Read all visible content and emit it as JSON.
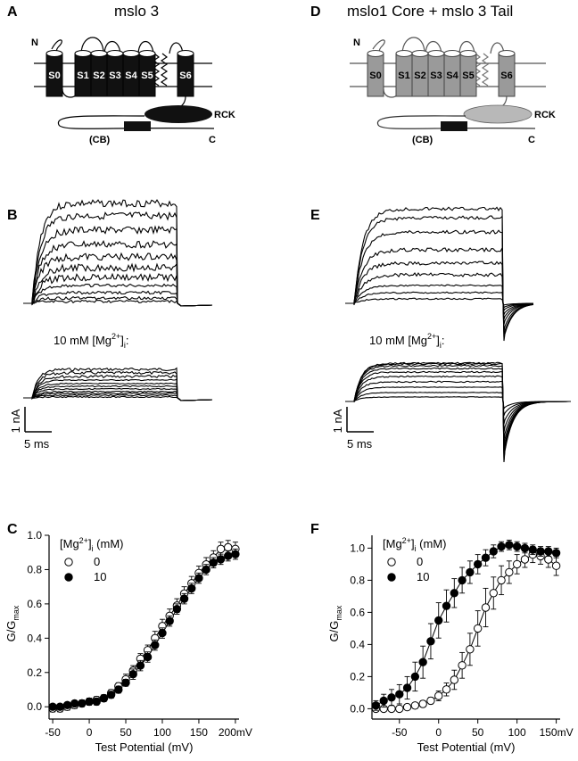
{
  "panels": {
    "A": {
      "letter": "A",
      "title": "mslo 3"
    },
    "D": {
      "letter": "D",
      "title": "mslo1 Core + mslo 3 Tail"
    },
    "B": {
      "letter": "B"
    },
    "E": {
      "letter": "E"
    },
    "C": {
      "letter": "C"
    },
    "F": {
      "letter": "F"
    }
  },
  "topology": {
    "n_terminus": "N",
    "c_terminus": "C",
    "segments": [
      "S0",
      "S1",
      "S2",
      "S3",
      "S4",
      "S5",
      "S6"
    ],
    "rck": "RCK",
    "cb": "(CB)"
  },
  "traces": {
    "mg_label": "10 mM [Mg",
    "mg_sup": "2+",
    "mg_tail": "]",
    "mg_sub": "i",
    "mg_colon": ":",
    "scale_current": "1 nA",
    "scale_time": "5 ms"
  },
  "colors": {
    "wt_fill": "#111111",
    "chimera_fill": "#9a9a9a",
    "rck_chimera": "#b8b8b8"
  },
  "chart_data": [
    {
      "panel": "C",
      "type": "scatter",
      "xlabel": "Test Potential (mV)",
      "ylabel": "G/G",
      "ylabel_sub": "max",
      "legend_title": "[Mg",
      "legend_title_sup": "2+",
      "legend_title_sub": "i",
      "legend_title_tail": " (mM)",
      "xlim": [
        -55,
        205
      ],
      "ylim": [
        -0.03,
        1.0
      ],
      "xticks": [
        "-50",
        "0",
        "50",
        "100",
        "150",
        "200mV"
      ],
      "xtick_values": [
        -50,
        0,
        50,
        100,
        150,
        200
      ],
      "yticks": [
        "0.0",
        "0.2",
        "0.4",
        "0.6",
        "0.8",
        "1.0"
      ],
      "ytick_values": [
        0,
        0.2,
        0.4,
        0.6,
        0.8,
        1.0
      ],
      "legend_placement": "top-left",
      "series": [
        {
          "name": "0",
          "marker": "open",
          "x": [
            -50,
            -40,
            -30,
            -20,
            -10,
            0,
            10,
            20,
            30,
            40,
            50,
            60,
            70,
            80,
            90,
            100,
            110,
            120,
            130,
            140,
            150,
            160,
            170,
            180,
            190,
            200
          ],
          "y": [
            -0.01,
            -0.01,
            0.0,
            0.01,
            0.02,
            0.03,
            0.04,
            0.05,
            0.08,
            0.12,
            0.16,
            0.21,
            0.28,
            0.33,
            0.4,
            0.47,
            0.53,
            0.59,
            0.66,
            0.72,
            0.78,
            0.83,
            0.87,
            0.92,
            0.93,
            0.92
          ],
          "err": [
            0.02,
            0.02,
            0.02,
            0.02,
            0.02,
            0.02,
            0.02,
            0.02,
            0.02,
            0.02,
            0.03,
            0.03,
            0.03,
            0.03,
            0.04,
            0.04,
            0.04,
            0.04,
            0.04,
            0.04,
            0.04,
            0.04,
            0.04,
            0.04,
            0.04,
            0.04
          ]
        },
        {
          "name": "10",
          "marker": "filled",
          "x": [
            -50,
            -40,
            -30,
            -20,
            -10,
            0,
            10,
            20,
            30,
            40,
            50,
            60,
            70,
            80,
            90,
            100,
            110,
            120,
            130,
            140,
            150,
            160,
            170,
            180,
            190,
            200
          ],
          "y": [
            0.0,
            0.0,
            0.01,
            0.02,
            0.02,
            0.03,
            0.03,
            0.05,
            0.07,
            0.1,
            0.14,
            0.19,
            0.24,
            0.29,
            0.36,
            0.43,
            0.5,
            0.57,
            0.63,
            0.69,
            0.75,
            0.8,
            0.84,
            0.86,
            0.88,
            0.89
          ],
          "err": [
            0.01,
            0.01,
            0.01,
            0.01,
            0.01,
            0.02,
            0.02,
            0.02,
            0.02,
            0.02,
            0.02,
            0.03,
            0.03,
            0.03,
            0.03,
            0.03,
            0.03,
            0.03,
            0.03,
            0.03,
            0.03,
            0.03,
            0.03,
            0.03,
            0.03,
            0.03
          ]
        }
      ]
    },
    {
      "panel": "F",
      "type": "scatter",
      "xlabel": "Test Potential (mV)",
      "ylabel": "G/G",
      "ylabel_sub": "max",
      "legend_title": "[Mg",
      "legend_title_sup": "2+",
      "legend_title_sub": "i",
      "legend_title_tail": " (mM)",
      "xlim": [
        -85,
        155
      ],
      "ylim": [
        -0.02,
        1.08
      ],
      "xticks": [
        "-50",
        "0",
        "50",
        "100",
        "150mV"
      ],
      "xtick_values": [
        -50,
        0,
        50,
        100,
        150
      ],
      "yticks": [
        "0.0",
        "0.2",
        "0.4",
        "0.6",
        "0.8",
        "1.0"
      ],
      "ytick_values": [
        0,
        0.2,
        0.4,
        0.6,
        0.8,
        1.0
      ],
      "legend_placement": "top-left",
      "series": [
        {
          "name": "0",
          "marker": "open",
          "x": [
            -80,
            -70,
            -60,
            -50,
            -40,
            -30,
            -20,
            -10,
            0,
            10,
            20,
            30,
            40,
            50,
            60,
            70,
            80,
            90,
            100,
            110,
            120,
            130,
            140,
            150
          ],
          "y": [
            0.0,
            0.0,
            0.0,
            0.0,
            0.01,
            0.02,
            0.03,
            0.05,
            0.08,
            0.12,
            0.18,
            0.27,
            0.37,
            0.5,
            0.63,
            0.72,
            0.8,
            0.85,
            0.9,
            0.93,
            0.96,
            0.95,
            0.93,
            0.89
          ],
          "err": [
            0.01,
            0.01,
            0.01,
            0.01,
            0.01,
            0.01,
            0.02,
            0.02,
            0.03,
            0.04,
            0.06,
            0.08,
            0.1,
            0.11,
            0.12,
            0.1,
            0.09,
            0.07,
            0.06,
            0.05,
            0.05,
            0.05,
            0.05,
            0.06
          ]
        },
        {
          "name": "10",
          "marker": "filled",
          "x": [
            -80,
            -70,
            -60,
            -50,
            -40,
            -30,
            -20,
            -10,
            0,
            10,
            20,
            30,
            40,
            50,
            60,
            70,
            80,
            90,
            100,
            110,
            120,
            130,
            140,
            150
          ],
          "y": [
            0.02,
            0.05,
            0.07,
            0.09,
            0.13,
            0.2,
            0.29,
            0.42,
            0.55,
            0.64,
            0.72,
            0.8,
            0.85,
            0.9,
            0.94,
            0.98,
            1.01,
            1.02,
            1.01,
            1.0,
            0.99,
            0.98,
            0.98,
            0.97
          ],
          "err": [
            0.03,
            0.04,
            0.05,
            0.06,
            0.07,
            0.09,
            0.1,
            0.11,
            0.11,
            0.1,
            0.09,
            0.08,
            0.07,
            0.06,
            0.05,
            0.04,
            0.03,
            0.03,
            0.03,
            0.03,
            0.03,
            0.03,
            0.03,
            0.03
          ]
        }
      ]
    }
  ]
}
